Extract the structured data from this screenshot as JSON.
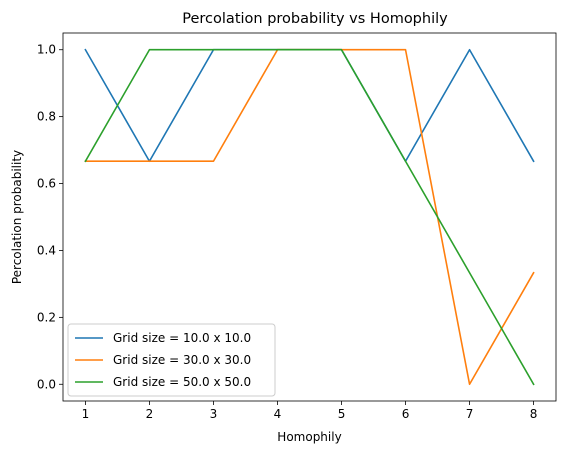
{
  "chart_data": {
    "type": "line",
    "title": "Percolation probability vs Homophily",
    "xlabel": "Homophily",
    "ylabel": "Percolation probability",
    "x": [
      1,
      2,
      3,
      4,
      5,
      6,
      7,
      8
    ],
    "xlim": [
      0.65,
      8.35
    ],
    "ylim": [
      -0.05,
      1.05
    ],
    "xticks": [
      "1",
      "2",
      "3",
      "4",
      "5",
      "6",
      "7",
      "8"
    ],
    "yticks": [
      "0.0",
      "0.2",
      "0.4",
      "0.6",
      "0.8",
      "1.0"
    ],
    "grid": false,
    "legend_position": "lower-left",
    "series": [
      {
        "name": "Grid size = 10.0 x 10.0",
        "color": "#1f77b4",
        "values": [
          1.0,
          0.6667,
          1.0,
          1.0,
          1.0,
          0.6667,
          1.0,
          0.6667
        ]
      },
      {
        "name": "Grid size = 30.0 x 30.0",
        "color": "#ff7f0e",
        "values": [
          0.6667,
          0.6667,
          0.6667,
          1.0,
          1.0,
          1.0,
          0.0,
          0.3333
        ]
      },
      {
        "name": "Grid size = 50.0 x 50.0",
        "color": "#2ca02c",
        "values": [
          0.6667,
          1.0,
          1.0,
          1.0,
          1.0,
          0.6667,
          0.3333,
          0.0
        ]
      }
    ]
  }
}
